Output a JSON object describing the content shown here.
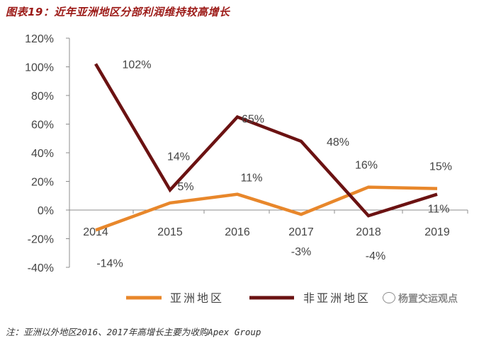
{
  "chart_data": {
    "type": "line",
    "title": "图表19：近年亚洲地区分部利润维持较高增长",
    "categories": [
      "2014",
      "2015",
      "2016",
      "2017",
      "2018",
      "2019"
    ],
    "ylim": [
      -40,
      120
    ],
    "yticks": [
      "120%",
      "100%",
      "80%",
      "60%",
      "40%",
      "20%",
      "0%",
      "-20%",
      "-40%"
    ],
    "ytick_values": [
      120,
      100,
      80,
      60,
      40,
      20,
      0,
      -20,
      -40
    ],
    "legend_position": "bottom",
    "series": [
      {
        "name": "亚洲地区",
        "color": "#e8872b",
        "values": [
          -14,
          5,
          11,
          -3,
          16,
          15
        ],
        "labels": [
          "-14%",
          "5%",
          "11%",
          "-3%",
          "16%",
          "15%"
        ]
      },
      {
        "name": "非亚洲地区",
        "color": "#6b1212",
        "values": [
          102,
          14,
          65,
          48,
          -4,
          11
        ],
        "labels": [
          "102%",
          "14%",
          "65%",
          "48%",
          "-4%",
          "11%"
        ]
      }
    ]
  },
  "note": "注：亚洲以外地区2016、2017年高增长主要为收购Apex Group",
  "watermark": "杨置交运观点"
}
